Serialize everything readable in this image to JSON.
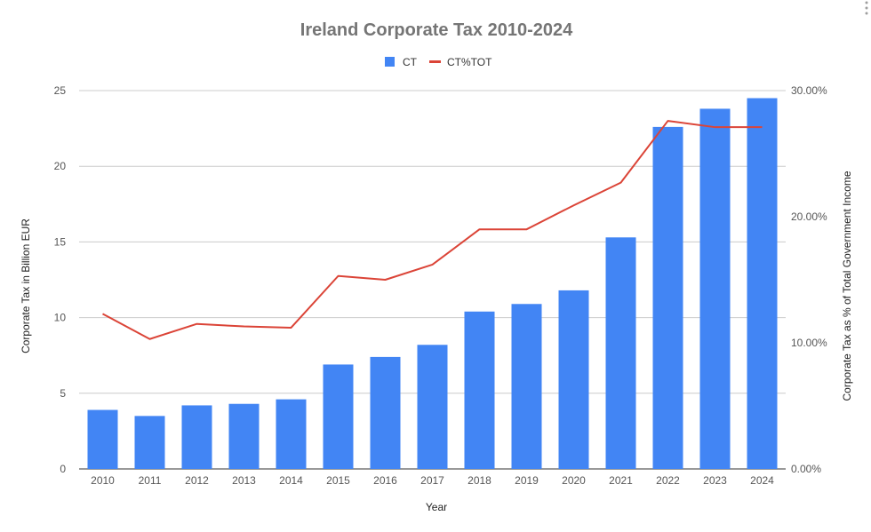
{
  "chart_data": {
    "type": "bar",
    "title": "Ireland Corporate Tax 2010-2024",
    "xlabel": "Year",
    "ylabel": "Corporate Tax in Billion EUR",
    "y2label": "Corporate Tax as % of Total Government Income",
    "categories": [
      "2010",
      "2011",
      "2012",
      "2013",
      "2014",
      "2015",
      "2016",
      "2017",
      "2018",
      "2019",
      "2020",
      "2021",
      "2022",
      "2023",
      "2024"
    ],
    "series": [
      {
        "name": "CT",
        "type": "bar",
        "axis": "left",
        "color": "#4285f4",
        "values": [
          3.9,
          3.5,
          4.2,
          4.3,
          4.6,
          6.9,
          7.4,
          8.2,
          10.4,
          10.9,
          11.8,
          15.3,
          22.6,
          23.8,
          24.5
        ]
      },
      {
        "name": "CT%TOT",
        "type": "line",
        "axis": "right",
        "color": "#db4437",
        "values": [
          12.3,
          10.3,
          11.5,
          11.3,
          11.2,
          15.3,
          15.0,
          16.2,
          19.0,
          19.0,
          20.9,
          22.7,
          27.6,
          27.1,
          27.1
        ]
      }
    ],
    "ylim": [
      0,
      25
    ],
    "yticks": [
      "0",
      "5",
      "10",
      "15",
      "20",
      "25"
    ],
    "y2lim": [
      0,
      30
    ],
    "y2ticks": [
      "0.00%",
      "10.00%",
      "20.00%",
      "30.00%"
    ],
    "grid": true,
    "legend_position": "top"
  }
}
